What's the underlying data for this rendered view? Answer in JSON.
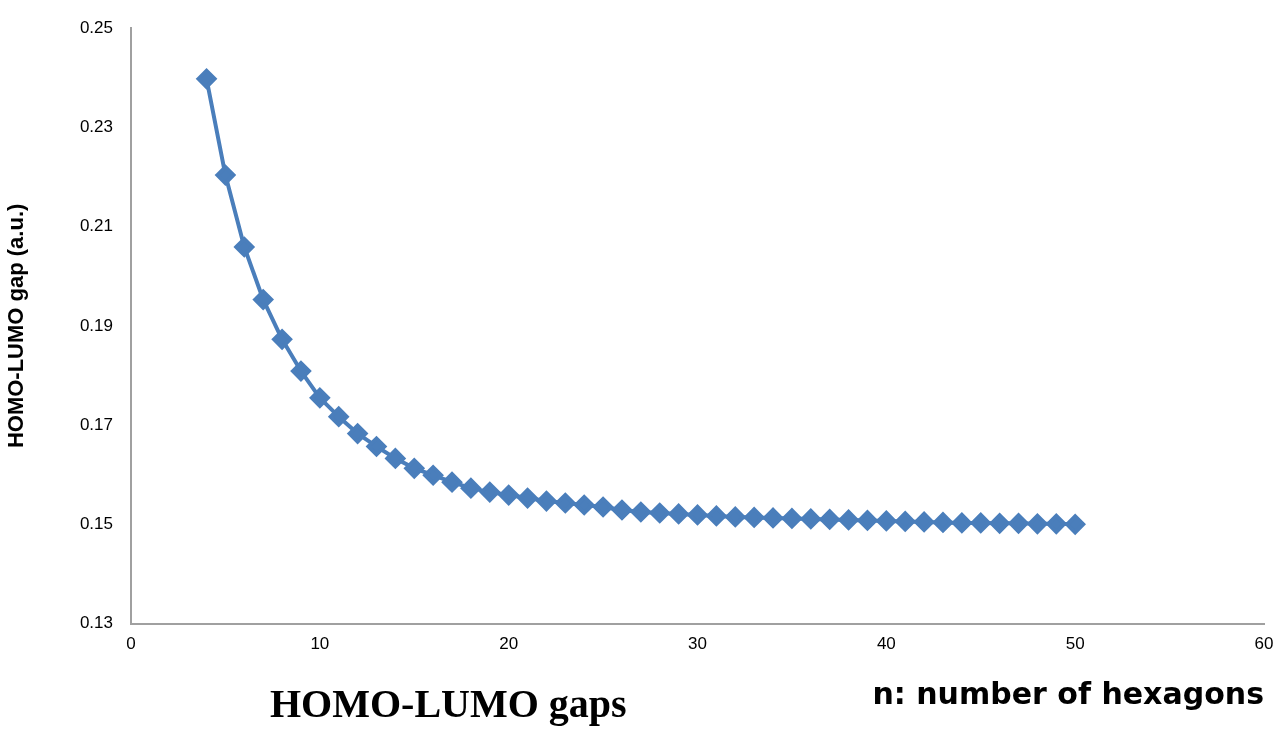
{
  "chart_data": {
    "type": "line",
    "xlabel": "n: number of hexagons",
    "ylabel": "HOMO-LUMO gap (a.u.)",
    "annotations": [
      "HOMO-LUMO gaps"
    ],
    "x": [
      4,
      5,
      6,
      7,
      8,
      9,
      10,
      11,
      12,
      13,
      14,
      15,
      16,
      17,
      18,
      19,
      20,
      21,
      22,
      23,
      24,
      25,
      26,
      27,
      28,
      29,
      30,
      31,
      32,
      33,
      34,
      35,
      36,
      37,
      38,
      39,
      40,
      41,
      42,
      43,
      44,
      45,
      46,
      47,
      48,
      49,
      50
    ],
    "series": [
      {
        "color": "#4a7ebb",
        "values": [
          0.2398,
          0.2204,
          0.2059,
          0.1953,
          0.1873,
          0.1809,
          0.1755,
          0.1717,
          0.1683,
          0.1657,
          0.1633,
          0.1613,
          0.1599,
          0.1585,
          0.1573,
          0.1565,
          0.1559,
          0.1553,
          0.1547,
          0.1543,
          0.1539,
          0.1535,
          0.1529,
          0.1525,
          0.1523,
          0.1521,
          0.1519,
          0.1517,
          0.1515,
          0.1514,
          0.1513,
          0.1512,
          0.1511,
          0.151,
          0.1509,
          0.1508,
          0.1507,
          0.1506,
          0.1505,
          0.1504,
          0.1503,
          0.1503,
          0.1502,
          0.1502,
          0.1501,
          0.1501,
          0.15
        ]
      }
    ],
    "xlim": [
      0,
      60
    ],
    "xticks": [
      0,
      10,
      20,
      30,
      40,
      50,
      60
    ],
    "ylim": [
      0.13,
      0.25
    ],
    "yticks": [
      0.13,
      0.15,
      0.17,
      0.19,
      0.21,
      0.23,
      0.25
    ],
    "grid": false,
    "legend": false,
    "marker": "diamond",
    "line_style": "solid"
  }
}
